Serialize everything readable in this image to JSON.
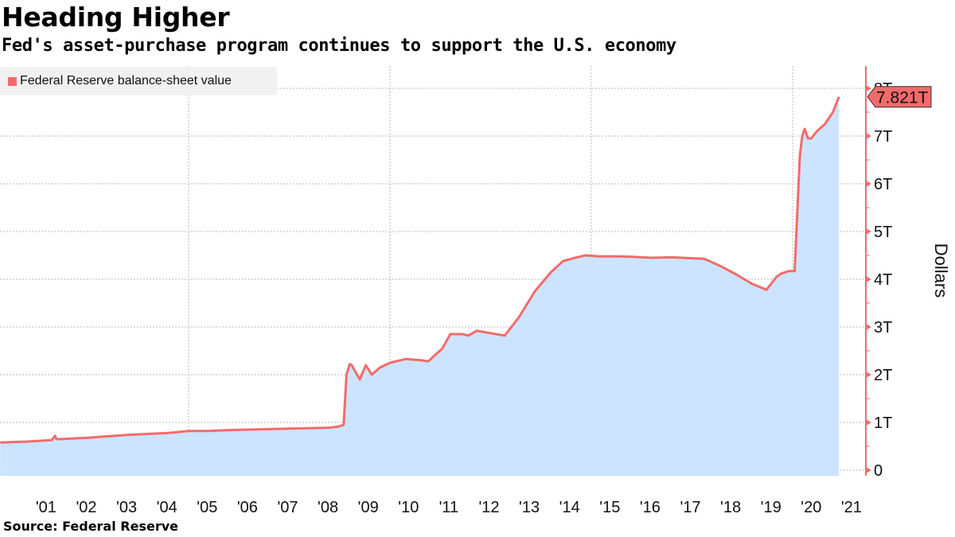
{
  "header": {
    "title": "Heading Higher",
    "subtitle": "Fed's asset-purchase program continues to support the U.S. economy"
  },
  "footer": {
    "source": "Source:  Federal Reserve"
  },
  "colors": {
    "line": "#f26b6b",
    "area": "#cce4fd",
    "axis": "#f26b6b",
    "grid": "#b8b8b8",
    "legend_bg": "#f1f1f1"
  },
  "chart_data": {
    "type": "area",
    "title": "Heading Higher",
    "subtitle": "Fed's asset-purchase program continues to support the U.S. economy",
    "xlabel": "",
    "ylabel": "Dollars",
    "legend": [
      {
        "name": "Federal Reserve balance-sheet value",
        "color": "#f26b6b",
        "placement": "top-left"
      }
    ],
    "y_axis_side": "right",
    "ylim": [
      0,
      8.2
    ],
    "yticks": [
      0,
      1,
      2,
      3,
      4,
      5,
      6,
      7,
      8
    ],
    "ytick_labels": [
      "0",
      "1T",
      "2T",
      "3T",
      "4T",
      "5T",
      "6T",
      "7T",
      "8T"
    ],
    "xlim": [
      2000.32,
      2021.2
    ],
    "xticks_labels": [
      "'01",
      "'02",
      "'03",
      "'04",
      "'05",
      "'06",
      "'07",
      "'08",
      "'09",
      "'10",
      "'11",
      "'12",
      "'13",
      "'14",
      "'15",
      "'16",
      "'17",
      "'18",
      "'19",
      "'20",
      "'21"
    ],
    "xticks_years": [
      2001,
      2002,
      2003,
      2004,
      2005,
      2006,
      2007,
      2008,
      2009,
      2010,
      2011,
      2012,
      2013,
      2014,
      2015,
      2016,
      2017,
      2018,
      2019,
      2020,
      2021
    ],
    "vertical_grid_years": [
      2005,
      2010,
      2015,
      2020
    ],
    "grid": true,
    "last_value_label": "7.821T",
    "last_value": 7.821,
    "series": [
      {
        "name": "Federal Reserve balance-sheet value",
        "unit": "trillion USD",
        "x": [
          2000.32,
          2001.0,
          2001.6,
          2001.68,
          2001.72,
          2001.8,
          2002.5,
          2003.0,
          2003.5,
          2004.0,
          2004.5,
          2005.0,
          2005.5,
          2006.0,
          2006.5,
          2007.0,
          2007.5,
          2008.0,
          2008.5,
          2008.7,
          2008.85,
          2008.92,
          2009.0,
          2009.05,
          2009.25,
          2009.4,
          2009.55,
          2009.75,
          2010.0,
          2010.4,
          2010.8,
          2010.95,
          2011.3,
          2011.5,
          2011.8,
          2011.95,
          2012.15,
          2012.5,
          2012.85,
          2013.2,
          2013.6,
          2014.0,
          2014.3,
          2014.6,
          2014.85,
          2015.2,
          2015.6,
          2016.0,
          2016.5,
          2017.0,
          2017.5,
          2017.8,
          2018.2,
          2018.6,
          2019.0,
          2019.35,
          2019.6,
          2019.72,
          2019.9,
          2020.05,
          2020.18,
          2020.24,
          2020.3,
          2020.38,
          2020.46,
          2020.6,
          2020.8,
          2021.0,
          2021.15
        ],
        "values": [
          0.58,
          0.6,
          0.63,
          0.72,
          0.65,
          0.65,
          0.68,
          0.71,
          0.74,
          0.76,
          0.78,
          0.82,
          0.82,
          0.84,
          0.85,
          0.86,
          0.87,
          0.88,
          0.89,
          0.91,
          0.95,
          2.0,
          2.22,
          2.2,
          1.9,
          2.2,
          2.0,
          2.15,
          2.25,
          2.33,
          2.3,
          2.28,
          2.55,
          2.85,
          2.85,
          2.82,
          2.92,
          2.87,
          2.82,
          3.2,
          3.75,
          4.15,
          4.38,
          4.45,
          4.5,
          4.48,
          4.48,
          4.47,
          4.45,
          4.46,
          4.44,
          4.43,
          4.28,
          4.1,
          3.9,
          3.78,
          4.05,
          4.12,
          4.17,
          4.17,
          6.6,
          7.0,
          7.15,
          6.95,
          6.95,
          7.1,
          7.25,
          7.5,
          7.82
        ]
      }
    ]
  }
}
